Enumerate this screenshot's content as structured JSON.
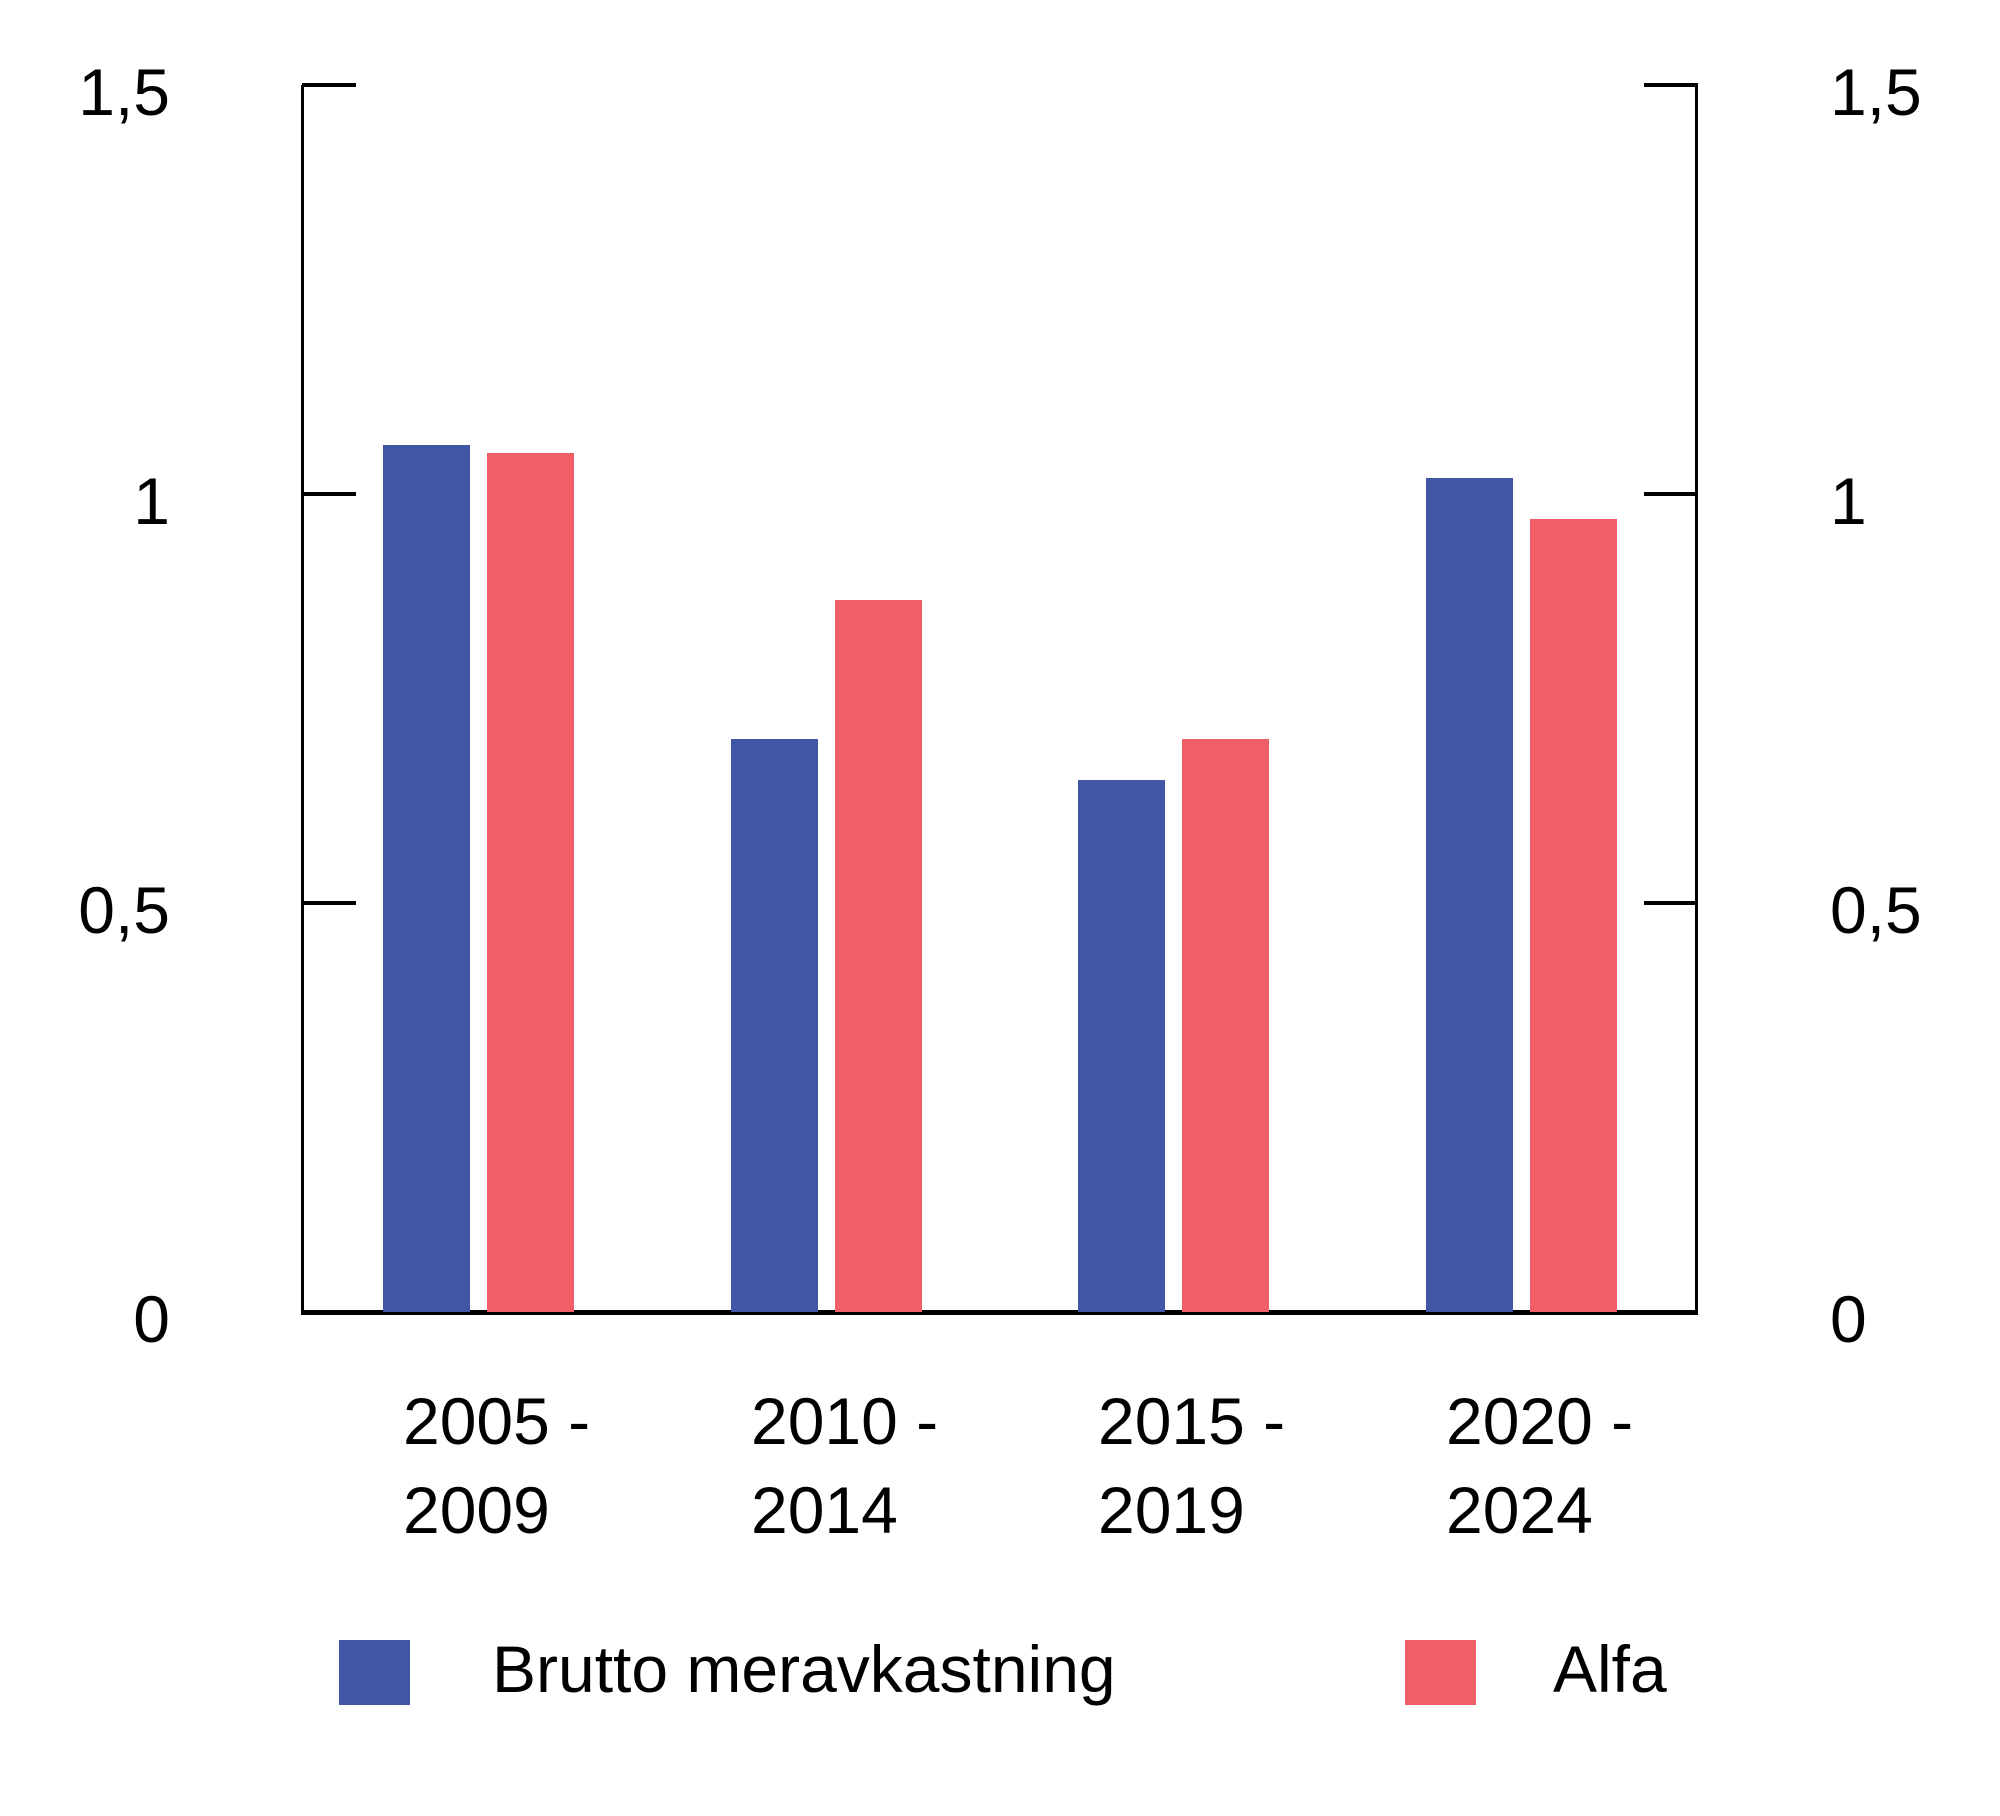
{
  "chart_data": {
    "type": "bar",
    "title": "",
    "xlabel": "",
    "ylabel": "",
    "categories": [
      "2005 - 2009",
      "2010 - 2014",
      "2015 - 2019",
      "2020 - 2024"
    ],
    "category_lines": [
      [
        "2005 -",
        "2009"
      ],
      [
        "2010 -",
        "2014"
      ],
      [
        "2015 -",
        "2019"
      ],
      [
        "2020 -",
        "2024"
      ]
    ],
    "series": [
      {
        "name": "Brutto meravkastning",
        "color": "#4156A5",
        "values": [
          1.06,
          0.7,
          0.65,
          1.02
        ]
      },
      {
        "name": "Alfa",
        "color": "#F05E66",
        "values": [
          1.05,
          0.87,
          0.7,
          0.97
        ]
      }
    ],
    "ylim": [
      0,
      1.5
    ],
    "yticks": [
      0,
      0.5,
      1,
      1.5
    ],
    "ytick_labels": [
      "0",
      "0,5",
      "1",
      "1,5"
    ],
    "y_axis_sides": [
      "left",
      "right"
    ],
    "grid": false,
    "legend_position": "bottom",
    "decimal_separator": ",",
    "axis_color": "#000000",
    "text_color": "#000000",
    "background_color": "#ffffff"
  },
  "legend": {
    "items": [
      {
        "label": "Brutto meravkastning",
        "color": "#4156A5"
      },
      {
        "label": "Alfa",
        "color": "#F05E66"
      }
    ]
  }
}
